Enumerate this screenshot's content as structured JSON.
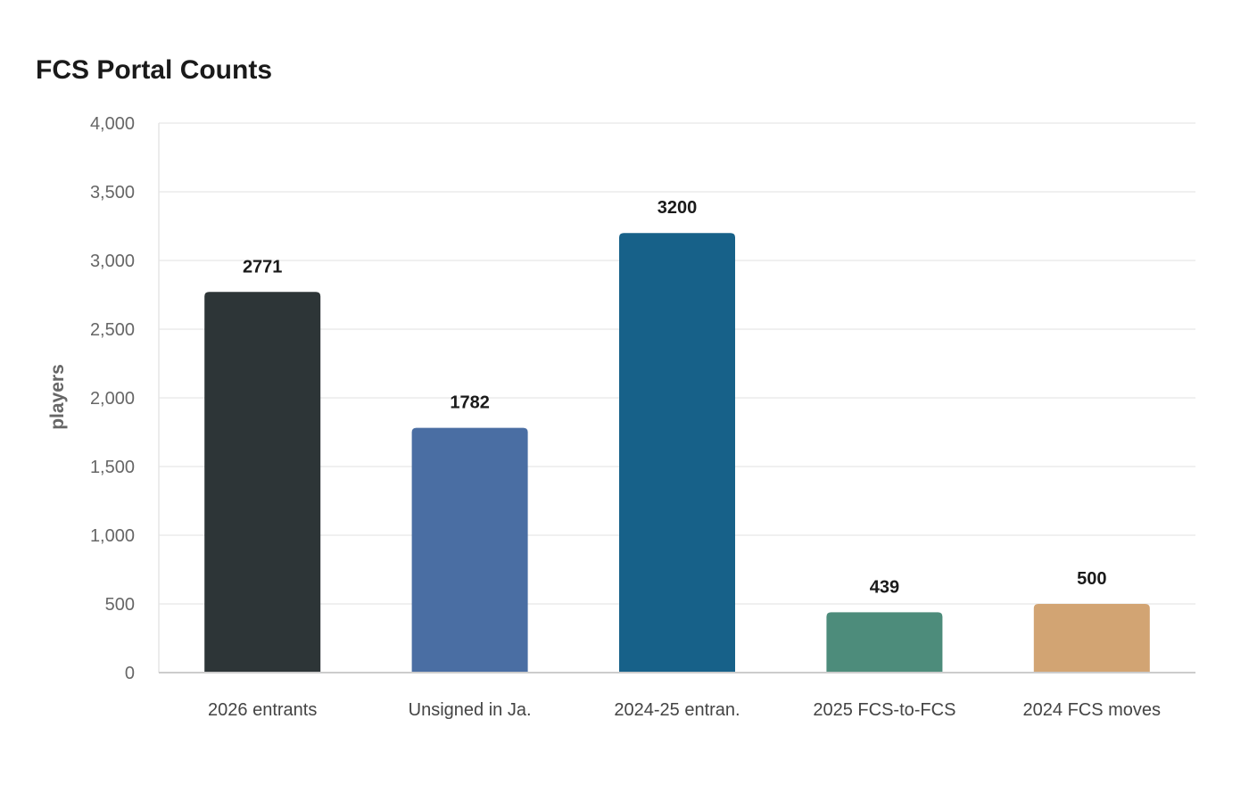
{
  "chart_data": {
    "type": "bar",
    "title": "FCS Portal Counts",
    "xlabel": "",
    "ylabel": "players",
    "categories": [
      "2026 entrants",
      "Unsigned in Ja.",
      "2024-25 entran.",
      "2025 FCS-to-FCS",
      "2024 FCS moves"
    ],
    "values": [
      2771,
      1782,
      3200,
      439,
      500
    ],
    "data_labels": [
      "2771",
      "1782",
      "3200",
      "439",
      "500"
    ],
    "colors": [
      "#2d3537",
      "#4a6ea3",
      "#176189",
      "#4d8c7b",
      "#d2a473"
    ],
    "ylim": [
      0,
      4000
    ],
    "yticks": [
      0,
      500,
      1000,
      1500,
      2000,
      2500,
      3000,
      3500,
      4000
    ],
    "ytick_labels": [
      "0",
      "500",
      "1,000",
      "1,500",
      "2,000",
      "2,500",
      "3,000",
      "3,500",
      "4,000"
    ],
    "grid": true,
    "legend": "none"
  }
}
